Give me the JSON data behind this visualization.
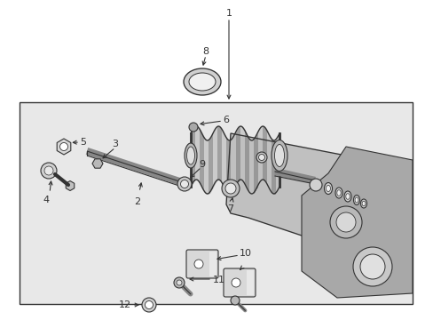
{
  "bg": "#ffffff",
  "box_fill": "#e8e8e8",
  "lc": "#333333",
  "fs": 8,
  "dpi": 100,
  "figw": 4.89,
  "figh": 3.6
}
